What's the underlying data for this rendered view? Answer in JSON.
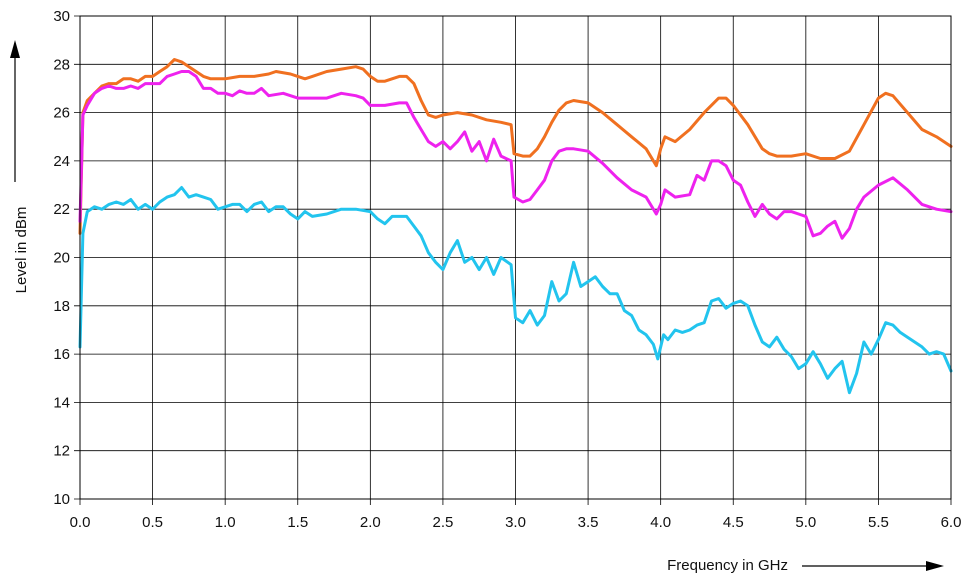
{
  "chart_data": {
    "type": "line",
    "xlabel": "Frequency in GHz",
    "ylabel": "Level in dBm",
    "xlim": [
      0,
      6
    ],
    "ylim": [
      10,
      30
    ],
    "grid": true,
    "x_ticks": [
      "0.0",
      "0.5",
      "1.0",
      "1.5",
      "2.0",
      "2.5",
      "3.0",
      "3.5",
      "4.0",
      "4.5",
      "5.0",
      "5.5",
      "6.0"
    ],
    "y_ticks": [
      "10",
      "12",
      "14",
      "16",
      "18",
      "20",
      "22",
      "24",
      "26",
      "28",
      "30"
    ],
    "series": [
      {
        "color": "#f07020",
        "points": [
          [
            0.0,
            21.0
          ],
          [
            0.02,
            26.0
          ],
          [
            0.05,
            26.5
          ],
          [
            0.1,
            26.8
          ],
          [
            0.15,
            27.1
          ],
          [
            0.2,
            27.2
          ],
          [
            0.25,
            27.2
          ],
          [
            0.3,
            27.4
          ],
          [
            0.35,
            27.4
          ],
          [
            0.4,
            27.3
          ],
          [
            0.45,
            27.5
          ],
          [
            0.5,
            27.5
          ],
          [
            0.55,
            27.7
          ],
          [
            0.6,
            27.9
          ],
          [
            0.65,
            28.2
          ],
          [
            0.7,
            28.1
          ],
          [
            0.75,
            27.9
          ],
          [
            0.8,
            27.7
          ],
          [
            0.85,
            27.5
          ],
          [
            0.9,
            27.4
          ],
          [
            1.0,
            27.4
          ],
          [
            1.1,
            27.5
          ],
          [
            1.2,
            27.5
          ],
          [
            1.3,
            27.6
          ],
          [
            1.35,
            27.7
          ],
          [
            1.45,
            27.6
          ],
          [
            1.5,
            27.5
          ],
          [
            1.55,
            27.4
          ],
          [
            1.6,
            27.5
          ],
          [
            1.7,
            27.7
          ],
          [
            1.8,
            27.8
          ],
          [
            1.9,
            27.9
          ],
          [
            1.95,
            27.8
          ],
          [
            2.0,
            27.5
          ],
          [
            2.05,
            27.3
          ],
          [
            2.1,
            27.3
          ],
          [
            2.15,
            27.4
          ],
          [
            2.2,
            27.5
          ],
          [
            2.25,
            27.5
          ],
          [
            2.3,
            27.2
          ],
          [
            2.35,
            26.5
          ],
          [
            2.4,
            25.9
          ],
          [
            2.45,
            25.8
          ],
          [
            2.5,
            25.9
          ],
          [
            2.6,
            26.0
          ],
          [
            2.7,
            25.9
          ],
          [
            2.8,
            25.7
          ],
          [
            2.9,
            25.6
          ],
          [
            2.97,
            25.5
          ],
          [
            2.99,
            24.3
          ],
          [
            3.05,
            24.2
          ],
          [
            3.1,
            24.2
          ],
          [
            3.15,
            24.5
          ],
          [
            3.2,
            25.0
          ],
          [
            3.25,
            25.6
          ],
          [
            3.3,
            26.1
          ],
          [
            3.35,
            26.4
          ],
          [
            3.4,
            26.5
          ],
          [
            3.5,
            26.4
          ],
          [
            3.6,
            26.0
          ],
          [
            3.7,
            25.5
          ],
          [
            3.8,
            25.0
          ],
          [
            3.9,
            24.5
          ],
          [
            3.97,
            23.8
          ],
          [
            4.0,
            24.5
          ],
          [
            4.03,
            25.0
          ],
          [
            4.1,
            24.8
          ],
          [
            4.2,
            25.3
          ],
          [
            4.3,
            26.0
          ],
          [
            4.4,
            26.6
          ],
          [
            4.45,
            26.6
          ],
          [
            4.5,
            26.3
          ],
          [
            4.6,
            25.5
          ],
          [
            4.7,
            24.5
          ],
          [
            4.75,
            24.3
          ],
          [
            4.8,
            24.2
          ],
          [
            4.9,
            24.2
          ],
          [
            5.0,
            24.3
          ],
          [
            5.1,
            24.1
          ],
          [
            5.2,
            24.1
          ],
          [
            5.3,
            24.4
          ],
          [
            5.4,
            25.5
          ],
          [
            5.5,
            26.6
          ],
          [
            5.55,
            26.8
          ],
          [
            5.6,
            26.7
          ],
          [
            5.7,
            26.0
          ],
          [
            5.8,
            25.3
          ],
          [
            5.9,
            25.0
          ],
          [
            6.0,
            24.6
          ]
        ]
      },
      {
        "color": "#ee22ee",
        "points": [
          [
            0.0,
            21.5
          ],
          [
            0.02,
            25.9
          ],
          [
            0.05,
            26.3
          ],
          [
            0.1,
            26.8
          ],
          [
            0.15,
            27.0
          ],
          [
            0.2,
            27.1
          ],
          [
            0.25,
            27.0
          ],
          [
            0.3,
            27.0
          ],
          [
            0.35,
            27.1
          ],
          [
            0.4,
            27.0
          ],
          [
            0.45,
            27.2
          ],
          [
            0.5,
            27.2
          ],
          [
            0.55,
            27.2
          ],
          [
            0.6,
            27.5
          ],
          [
            0.65,
            27.6
          ],
          [
            0.7,
            27.7
          ],
          [
            0.75,
            27.7
          ],
          [
            0.8,
            27.5
          ],
          [
            0.85,
            27.0
          ],
          [
            0.9,
            27.0
          ],
          [
            0.95,
            26.8
          ],
          [
            1.0,
            26.8
          ],
          [
            1.05,
            26.7
          ],
          [
            1.1,
            26.9
          ],
          [
            1.15,
            26.8
          ],
          [
            1.2,
            26.8
          ],
          [
            1.25,
            27.0
          ],
          [
            1.3,
            26.7
          ],
          [
            1.4,
            26.8
          ],
          [
            1.5,
            26.6
          ],
          [
            1.6,
            26.6
          ],
          [
            1.7,
            26.6
          ],
          [
            1.8,
            26.8
          ],
          [
            1.9,
            26.7
          ],
          [
            1.95,
            26.6
          ],
          [
            2.0,
            26.3
          ],
          [
            2.1,
            26.3
          ],
          [
            2.2,
            26.4
          ],
          [
            2.25,
            26.4
          ],
          [
            2.3,
            25.8
          ],
          [
            2.35,
            25.3
          ],
          [
            2.4,
            24.8
          ],
          [
            2.45,
            24.6
          ],
          [
            2.5,
            24.8
          ],
          [
            2.55,
            24.5
          ],
          [
            2.6,
            24.8
          ],
          [
            2.65,
            25.2
          ],
          [
            2.7,
            24.4
          ],
          [
            2.75,
            24.8
          ],
          [
            2.8,
            24.0
          ],
          [
            2.85,
            24.9
          ],
          [
            2.9,
            24.2
          ],
          [
            2.97,
            24.0
          ],
          [
            2.99,
            22.5
          ],
          [
            3.05,
            22.3
          ],
          [
            3.1,
            22.4
          ],
          [
            3.15,
            22.8
          ],
          [
            3.2,
            23.2
          ],
          [
            3.25,
            24.0
          ],
          [
            3.3,
            24.4
          ],
          [
            3.35,
            24.5
          ],
          [
            3.4,
            24.5
          ],
          [
            3.5,
            24.4
          ],
          [
            3.6,
            23.9
          ],
          [
            3.7,
            23.3
          ],
          [
            3.8,
            22.8
          ],
          [
            3.9,
            22.5
          ],
          [
            3.97,
            21.8
          ],
          [
            4.0,
            22.2
          ],
          [
            4.03,
            22.8
          ],
          [
            4.1,
            22.5
          ],
          [
            4.2,
            22.6
          ],
          [
            4.25,
            23.4
          ],
          [
            4.3,
            23.2
          ],
          [
            4.35,
            24.0
          ],
          [
            4.4,
            24.0
          ],
          [
            4.45,
            23.8
          ],
          [
            4.5,
            23.2
          ],
          [
            4.55,
            23.0
          ],
          [
            4.6,
            22.3
          ],
          [
            4.65,
            21.7
          ],
          [
            4.7,
            22.2
          ],
          [
            4.75,
            21.8
          ],
          [
            4.8,
            21.6
          ],
          [
            4.85,
            21.9
          ],
          [
            4.9,
            21.9
          ],
          [
            4.95,
            21.8
          ],
          [
            5.0,
            21.7
          ],
          [
            5.05,
            20.9
          ],
          [
            5.1,
            21.0
          ],
          [
            5.15,
            21.3
          ],
          [
            5.2,
            21.5
          ],
          [
            5.25,
            20.8
          ],
          [
            5.3,
            21.2
          ],
          [
            5.35,
            22.0
          ],
          [
            5.4,
            22.5
          ],
          [
            5.5,
            23.0
          ],
          [
            5.6,
            23.3
          ],
          [
            5.7,
            22.8
          ],
          [
            5.8,
            22.2
          ],
          [
            5.9,
            22.0
          ],
          [
            6.0,
            21.9
          ]
        ]
      },
      {
        "color": "#22c4ee",
        "points": [
          [
            0.0,
            16.3
          ],
          [
            0.02,
            21.0
          ],
          [
            0.05,
            21.9
          ],
          [
            0.1,
            22.1
          ],
          [
            0.15,
            22.0
          ],
          [
            0.2,
            22.2
          ],
          [
            0.25,
            22.3
          ],
          [
            0.3,
            22.2
          ],
          [
            0.35,
            22.4
          ],
          [
            0.4,
            22.0
          ],
          [
            0.45,
            22.2
          ],
          [
            0.5,
            22.0
          ],
          [
            0.55,
            22.3
          ],
          [
            0.6,
            22.5
          ],
          [
            0.65,
            22.6
          ],
          [
            0.7,
            22.9
          ],
          [
            0.75,
            22.5
          ],
          [
            0.8,
            22.6
          ],
          [
            0.85,
            22.5
          ],
          [
            0.9,
            22.4
          ],
          [
            0.95,
            22.0
          ],
          [
            1.0,
            22.1
          ],
          [
            1.05,
            22.2
          ],
          [
            1.1,
            22.2
          ],
          [
            1.15,
            21.9
          ],
          [
            1.2,
            22.2
          ],
          [
            1.25,
            22.3
          ],
          [
            1.3,
            21.9
          ],
          [
            1.35,
            22.1
          ],
          [
            1.4,
            22.1
          ],
          [
            1.45,
            21.8
          ],
          [
            1.5,
            21.6
          ],
          [
            1.55,
            21.9
          ],
          [
            1.6,
            21.7
          ],
          [
            1.7,
            21.8
          ],
          [
            1.8,
            22.0
          ],
          [
            1.9,
            22.0
          ],
          [
            2.0,
            21.9
          ],
          [
            2.05,
            21.6
          ],
          [
            2.1,
            21.4
          ],
          [
            2.15,
            21.7
          ],
          [
            2.25,
            21.7
          ],
          [
            2.3,
            21.3
          ],
          [
            2.35,
            20.9
          ],
          [
            2.4,
            20.2
          ],
          [
            2.45,
            19.8
          ],
          [
            2.5,
            19.5
          ],
          [
            2.55,
            20.2
          ],
          [
            2.6,
            20.7
          ],
          [
            2.65,
            19.8
          ],
          [
            2.7,
            20.0
          ],
          [
            2.75,
            19.5
          ],
          [
            2.8,
            20.0
          ],
          [
            2.85,
            19.3
          ],
          [
            2.9,
            20.0
          ],
          [
            2.97,
            19.7
          ],
          [
            3.0,
            17.5
          ],
          [
            3.05,
            17.3
          ],
          [
            3.1,
            17.8
          ],
          [
            3.15,
            17.2
          ],
          [
            3.2,
            17.6
          ],
          [
            3.25,
            19.0
          ],
          [
            3.3,
            18.2
          ],
          [
            3.35,
            18.5
          ],
          [
            3.4,
            19.8
          ],
          [
            3.45,
            18.8
          ],
          [
            3.5,
            19.0
          ],
          [
            3.55,
            19.2
          ],
          [
            3.6,
            18.8
          ],
          [
            3.65,
            18.5
          ],
          [
            3.7,
            18.5
          ],
          [
            3.75,
            17.8
          ],
          [
            3.8,
            17.6
          ],
          [
            3.85,
            17.0
          ],
          [
            3.9,
            16.8
          ],
          [
            3.95,
            16.4
          ],
          [
            3.98,
            15.8
          ],
          [
            4.02,
            16.8
          ],
          [
            4.05,
            16.6
          ],
          [
            4.1,
            17.0
          ],
          [
            4.15,
            16.9
          ],
          [
            4.2,
            17.0
          ],
          [
            4.25,
            17.2
          ],
          [
            4.3,
            17.3
          ],
          [
            4.35,
            18.2
          ],
          [
            4.4,
            18.3
          ],
          [
            4.45,
            17.9
          ],
          [
            4.5,
            18.1
          ],
          [
            4.55,
            18.2
          ],
          [
            4.6,
            18.0
          ],
          [
            4.65,
            17.2
          ],
          [
            4.7,
            16.5
          ],
          [
            4.75,
            16.3
          ],
          [
            4.8,
            16.7
          ],
          [
            4.85,
            16.2
          ],
          [
            4.9,
            15.9
          ],
          [
            4.95,
            15.4
          ],
          [
            5.0,
            15.6
          ],
          [
            5.05,
            16.1
          ],
          [
            5.1,
            15.6
          ],
          [
            5.15,
            15.0
          ],
          [
            5.2,
            15.4
          ],
          [
            5.25,
            15.7
          ],
          [
            5.3,
            14.4
          ],
          [
            5.35,
            15.2
          ],
          [
            5.4,
            16.5
          ],
          [
            5.45,
            16.0
          ],
          [
            5.5,
            16.6
          ],
          [
            5.55,
            17.3
          ],
          [
            5.6,
            17.2
          ],
          [
            5.65,
            16.9
          ],
          [
            5.7,
            16.7
          ],
          [
            5.8,
            16.3
          ],
          [
            5.85,
            16.0
          ],
          [
            5.9,
            16.1
          ],
          [
            5.95,
            16.0
          ],
          [
            6.0,
            15.3
          ]
        ]
      }
    ]
  }
}
